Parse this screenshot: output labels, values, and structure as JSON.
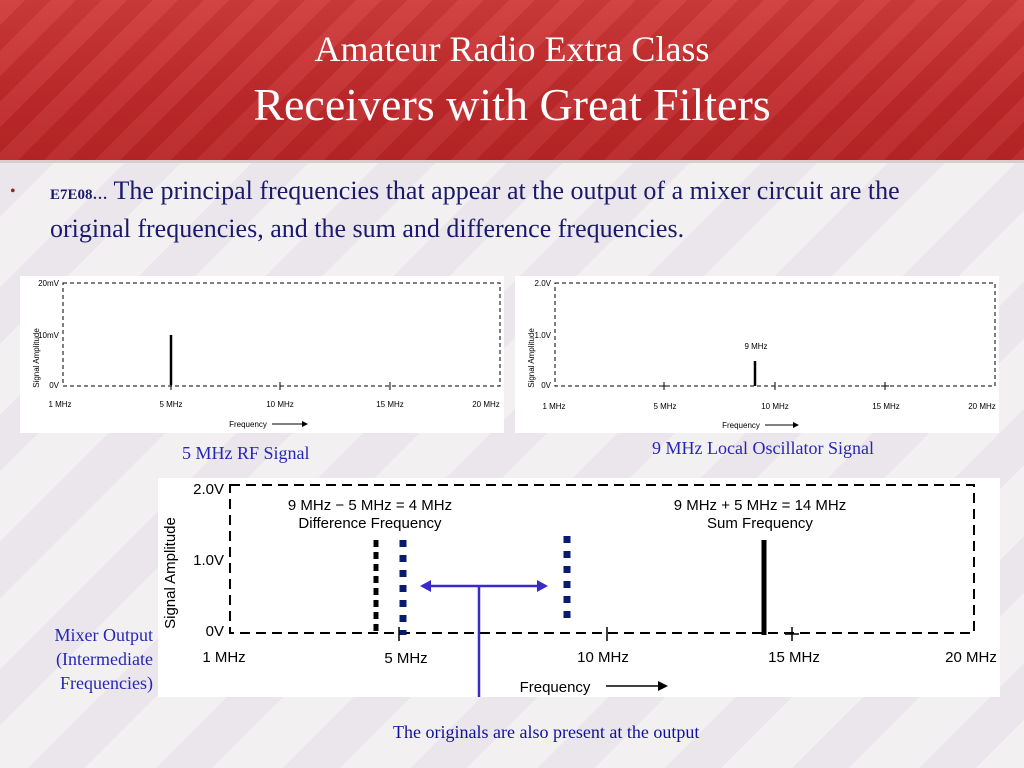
{
  "header": {
    "title_line1": "Amateur Radio Extra Class",
    "title_line2": "Receivers with Great Filters"
  },
  "bullet": {
    "marker": "•",
    "code": "E7E08…",
    "text": " The principal frequencies that appear at the output of a mixer circuit are the original frequencies, and the sum and difference frequencies."
  },
  "chart_rf": {
    "y_label": "Signal Amplitude",
    "y_ticks": [
      "20mV",
      "10mV",
      "0V"
    ],
    "x_ticks": [
      "1 MHz",
      "5 MHz",
      "10 MHz",
      "15 MHz",
      "20 MHz"
    ],
    "x_label": "Frequency",
    "caption": "5 MHz RF Signal"
  },
  "chart_lo": {
    "y_label": "Signal Amplitude",
    "y_ticks": [
      "2.0V",
      "1.0V",
      "0V"
    ],
    "x_ticks": [
      "1 MHz",
      "5 MHz",
      "10 MHz",
      "15 MHz",
      "20 MHz"
    ],
    "x_label": "Frequency",
    "peak_label": "9 MHz",
    "caption": "9 MHz Local Oscillator Signal"
  },
  "chart_mix": {
    "y_label": "Signal Amplitude",
    "y_ticks": [
      "2.0V",
      "1.0V",
      "0V"
    ],
    "x_ticks": [
      "1 MHz",
      "5 MHz",
      "10 MHz",
      "15 MHz",
      "20 MHz"
    ],
    "x_label": "Frequency",
    "diff_eq": "9 MHz − 5 MHz = 4 MHz",
    "diff_label": "Difference Frequency",
    "sum_eq": "9 MHz + 5 MHz = 14 MHz",
    "sum_label": "Sum Frequency",
    "side_label_1": "Mixer Output",
    "side_label_2": "(Intermediate",
    "side_label_3": "Frequencies)",
    "note": "The originals are also present at the output"
  },
  "chart_data": [
    {
      "type": "bar",
      "y_unit": "mV",
      "ylim": [
        0,
        20
      ],
      "xlim": [
        1,
        20
      ],
      "x_unit": "MHz",
      "x": [
        5
      ],
      "values": [
        10
      ]
    },
    {
      "type": "bar",
      "y_unit": "V",
      "ylim": [
        0,
        2.0
      ],
      "xlim": [
        1,
        20
      ],
      "x_unit": "MHz",
      "x": [
        9
      ],
      "values": [
        0.6
      ]
    },
    {
      "type": "bar",
      "y_unit": "V",
      "ylim": [
        0,
        2.0
      ],
      "xlim": [
        1,
        20
      ],
      "x_unit": "MHz",
      "series": [
        {
          "x": [
            4,
            14
          ],
          "values": [
            1.3,
            1.3
          ],
          "style": "difference/sum (black)"
        },
        {
          "x": [
            5,
            9
          ],
          "values": [
            1.4,
            1.4
          ],
          "style": "originals (dotted navy)"
        }
      ]
    }
  ],
  "colors": {
    "header_red": "#c02a2c",
    "caption_blue": "#2626b8",
    "arrow_blue": "#3a2acb",
    "navy": "#0a1a6e"
  }
}
